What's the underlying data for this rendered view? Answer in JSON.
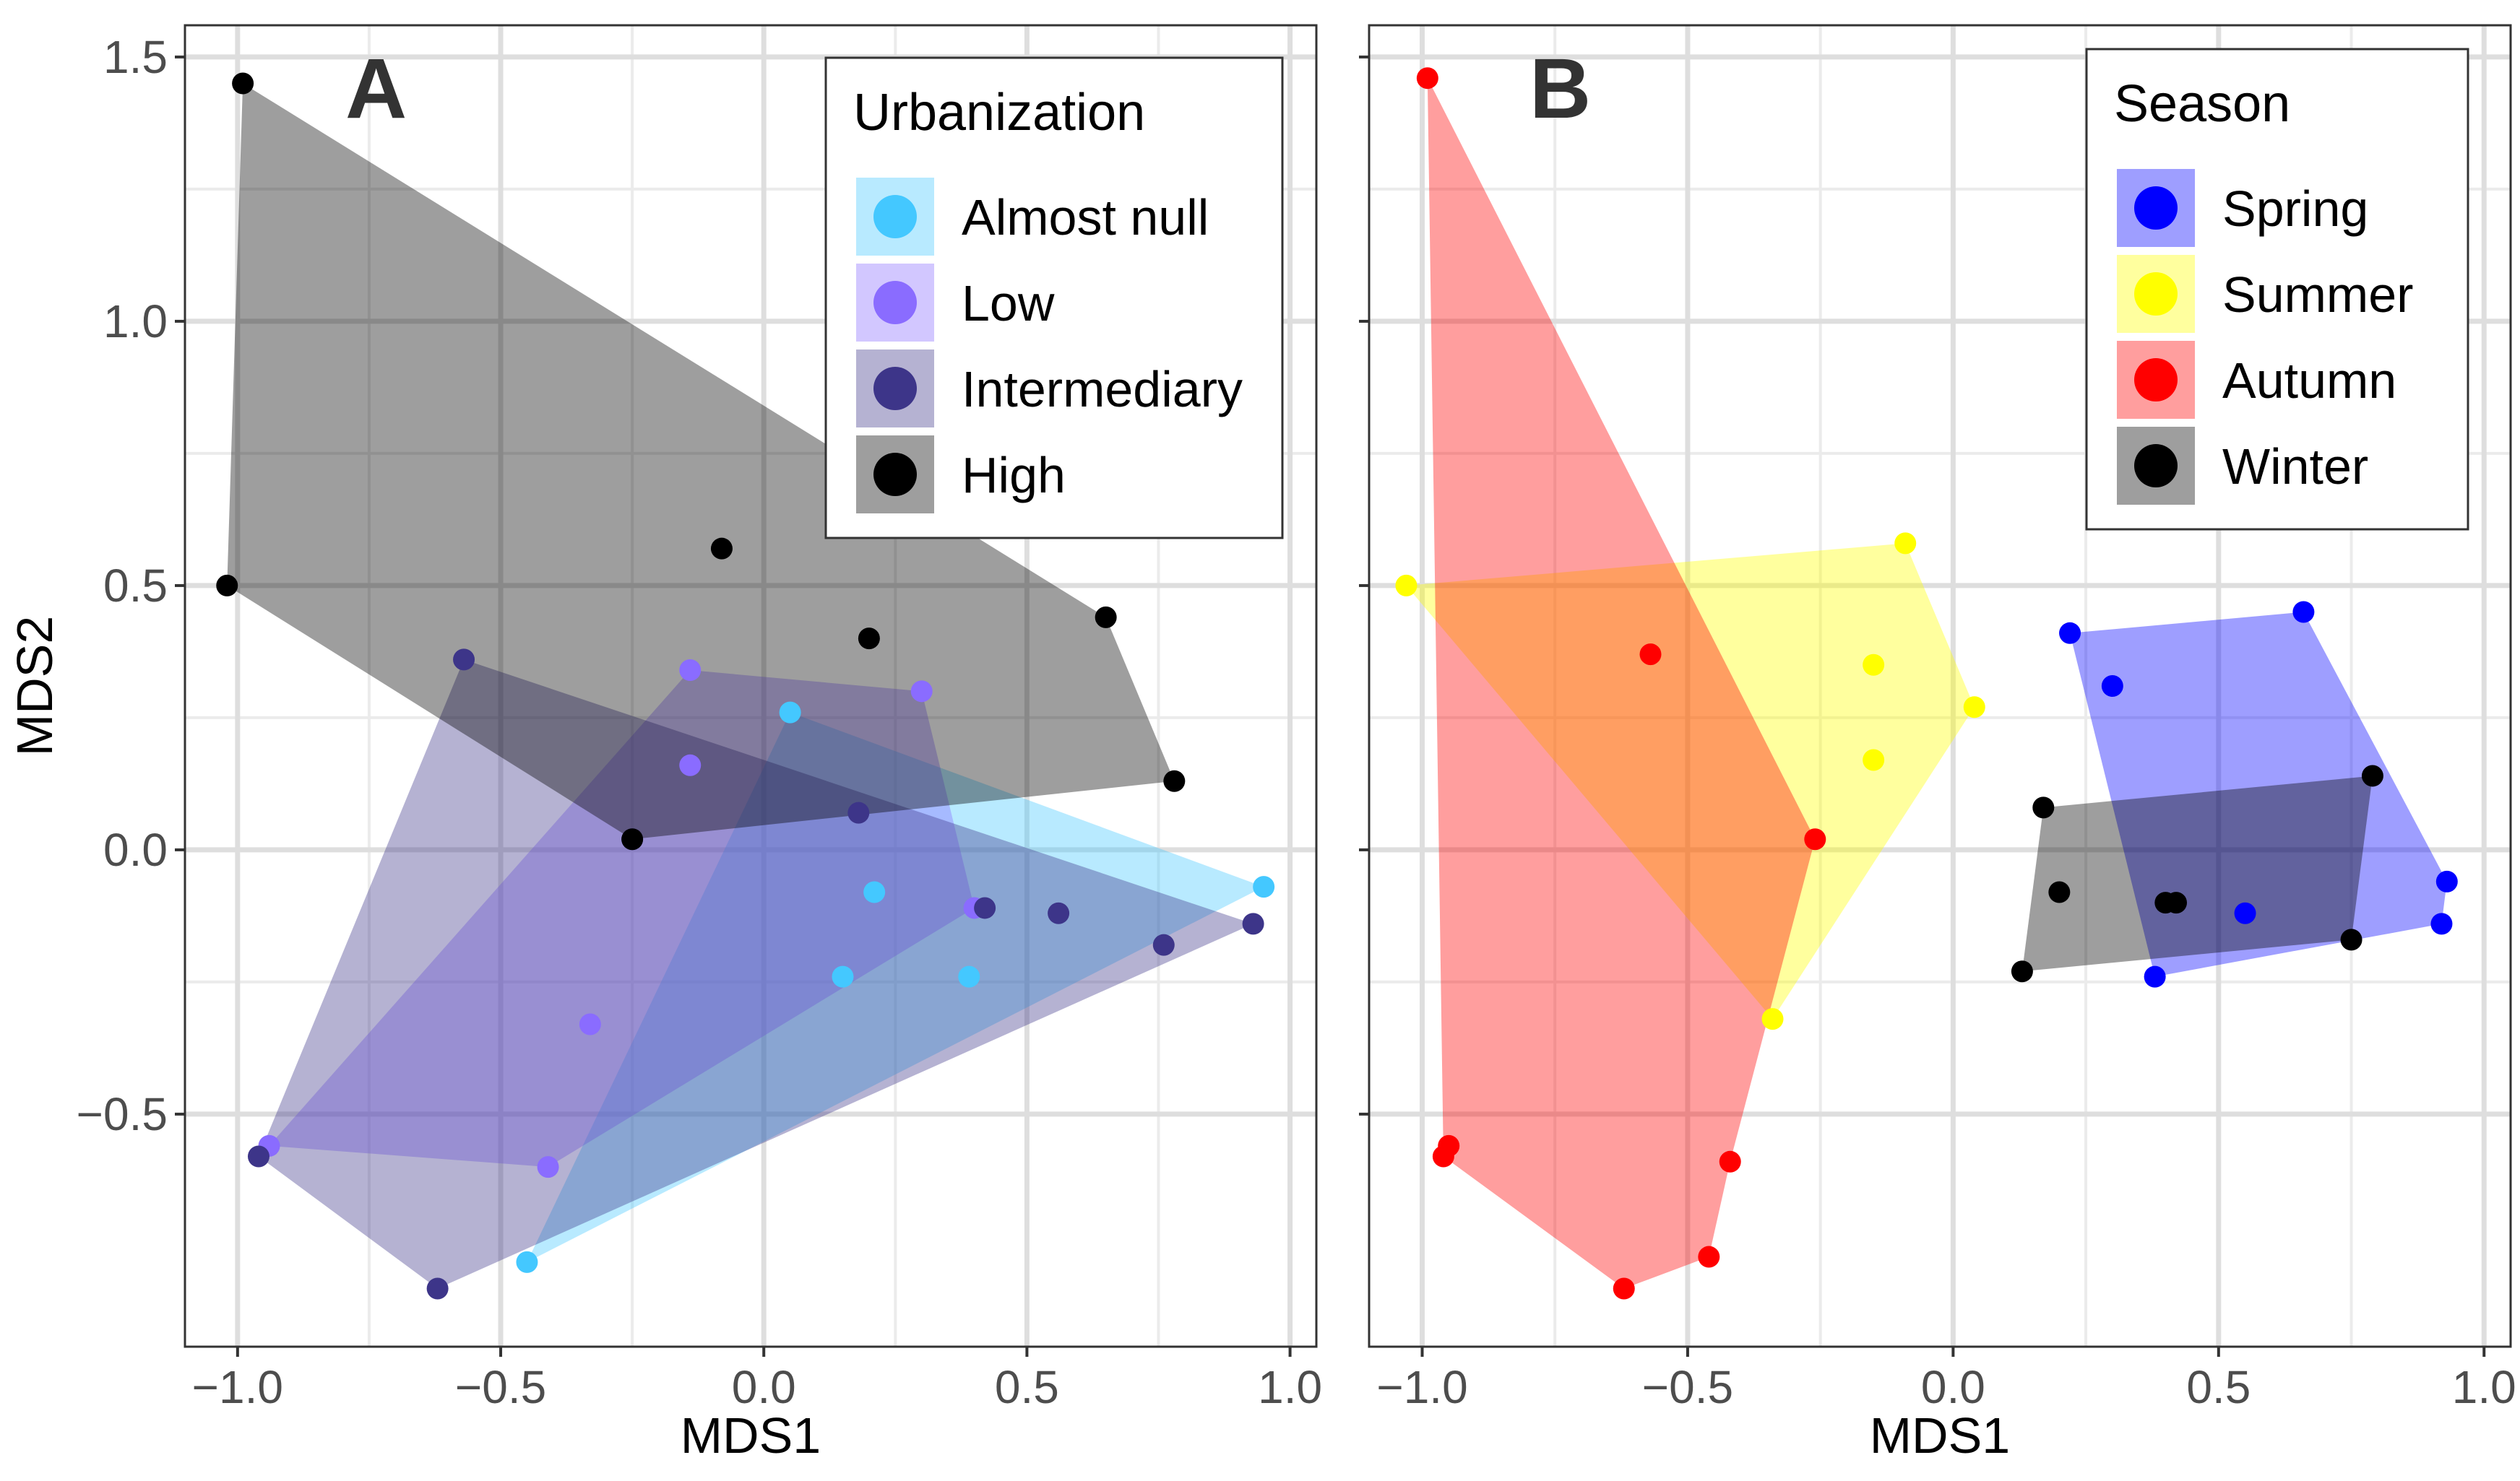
{
  "chart_data": [
    {
      "type": "scatter",
      "panel_tag": "A",
      "xlabel": "MDS1",
      "ylabel": "MDS2",
      "xlim": [
        -1.1,
        1.05
      ],
      "ylim": [
        -0.94,
        1.56
      ],
      "x_ticks": [
        {
          "value": -1.0,
          "label": "−1.0"
        },
        {
          "value": -0.5,
          "label": "−0.5"
        },
        {
          "value": 0.0,
          "label": "0.0"
        },
        {
          "value": 0.5,
          "label": "0.5"
        },
        {
          "value": 1.0,
          "label": "1.0"
        }
      ],
      "y_ticks": [
        {
          "value": -0.5,
          "label": "−0.5"
        },
        {
          "value": 0.0,
          "label": "0.0"
        },
        {
          "value": 0.5,
          "label": "0.5"
        },
        {
          "value": 1.0,
          "label": "1.0"
        },
        {
          "value": 1.5,
          "label": "1.5"
        }
      ],
      "grid": true,
      "legend": {
        "title": "Urbanization",
        "position": "top-right"
      },
      "series": [
        {
          "name": "Almost null",
          "color": "#44c8ff",
          "points": [
            [
              -0.45,
              -0.78
            ],
            [
              0.05,
              0.26
            ],
            [
              0.95,
              -0.07
            ],
            [
              0.15,
              -0.24
            ],
            [
              0.39,
              -0.24
            ],
            [
              0.21,
              -0.08
            ]
          ],
          "hull": [
            [
              -0.45,
              -0.78
            ],
            [
              0.05,
              0.26
            ],
            [
              0.95,
              -0.07
            ]
          ]
        },
        {
          "name": "Low",
          "color": "#8a6cff",
          "points": [
            [
              -0.94,
              -0.56
            ],
            [
              -0.41,
              -0.6
            ],
            [
              -0.14,
              0.34
            ],
            [
              0.3,
              0.3
            ],
            [
              0.4,
              -0.11
            ],
            [
              -0.33,
              -0.33
            ],
            [
              -0.14,
              0.16
            ]
          ],
          "hull": [
            [
              -0.94,
              -0.56
            ],
            [
              -0.14,
              0.34
            ],
            [
              0.3,
              0.3
            ],
            [
              0.4,
              -0.11
            ],
            [
              -0.41,
              -0.6
            ]
          ]
        },
        {
          "name": "Intermediary",
          "color": "#3d3589",
          "points": [
            [
              -0.96,
              -0.58
            ],
            [
              -0.57,
              0.36
            ],
            [
              -0.25,
              0.02
            ],
            [
              0.18,
              0.07
            ],
            [
              0.42,
              -0.11
            ],
            [
              0.56,
              -0.12
            ],
            [
              0.76,
              -0.18
            ],
            [
              0.93,
              -0.14
            ],
            [
              -0.62,
              -0.83
            ]
          ],
          "hull": [
            [
              -0.96,
              -0.58
            ],
            [
              -0.57,
              0.36
            ],
            [
              0.93,
              -0.14
            ],
            [
              -0.62,
              -0.83
            ]
          ]
        },
        {
          "name": "High",
          "color": "#000000",
          "points": [
            [
              -1.02,
              0.5
            ],
            [
              -0.99,
              1.45
            ],
            [
              -0.08,
              0.57
            ],
            [
              0.2,
              0.4
            ],
            [
              0.65,
              0.44
            ],
            [
              0.78,
              0.13
            ],
            [
              -0.25,
              0.02
            ]
          ],
          "hull": [
            [
              -1.02,
              0.5
            ],
            [
              -0.99,
              1.45
            ],
            [
              0.65,
              0.44
            ],
            [
              0.78,
              0.13
            ],
            [
              -0.25,
              0.02
            ]
          ]
        }
      ]
    },
    {
      "type": "scatter",
      "panel_tag": "B",
      "xlabel": "MDS1",
      "ylabel": "",
      "xlim": [
        -1.1,
        1.05
      ],
      "ylim": [
        -0.94,
        1.56
      ],
      "x_ticks": [
        {
          "value": -1.0,
          "label": "−1.0"
        },
        {
          "value": -0.5,
          "label": "−0.5"
        },
        {
          "value": 0.0,
          "label": "0.0"
        },
        {
          "value": 0.5,
          "label": "0.5"
        },
        {
          "value": 1.0,
          "label": "1.0"
        }
      ],
      "y_ticks": [
        {
          "value": -0.5,
          "label": ""
        },
        {
          "value": 0.0,
          "label": ""
        },
        {
          "value": 0.5,
          "label": ""
        },
        {
          "value": 1.0,
          "label": ""
        },
        {
          "value": 1.5,
          "label": ""
        }
      ],
      "grid": true,
      "legend": {
        "title": "Season",
        "position": "top-right"
      },
      "series": [
        {
          "name": "Spring",
          "color": "#0000ff",
          "points": [
            [
              0.22,
              0.41
            ],
            [
              0.3,
              0.31
            ],
            [
              0.66,
              0.45
            ],
            [
              0.93,
              -0.06
            ],
            [
              0.92,
              -0.14
            ],
            [
              0.38,
              -0.24
            ],
            [
              0.55,
              -0.12
            ]
          ],
          "hull": [
            [
              0.22,
              0.41
            ],
            [
              0.66,
              0.45
            ],
            [
              0.93,
              -0.06
            ],
            [
              0.92,
              -0.14
            ],
            [
              0.38,
              -0.24
            ]
          ]
        },
        {
          "name": "Summer",
          "color": "#ffff00",
          "points": [
            [
              -1.03,
              0.5
            ],
            [
              -0.09,
              0.58
            ],
            [
              0.04,
              0.27
            ],
            [
              -0.15,
              0.35
            ],
            [
              -0.15,
              0.17
            ],
            [
              -0.34,
              -0.32
            ]
          ],
          "hull": [
            [
              -1.03,
              0.5
            ],
            [
              -0.09,
              0.58
            ],
            [
              0.04,
              0.27
            ],
            [
              -0.34,
              -0.32
            ]
          ]
        },
        {
          "name": "Autumn",
          "color": "#ff0000",
          "points": [
            [
              -0.99,
              1.46
            ],
            [
              -0.57,
              0.37
            ],
            [
              -0.26,
              0.02
            ],
            [
              -0.42,
              -0.59
            ],
            [
              -0.46,
              -0.77
            ],
            [
              -0.62,
              -0.83
            ],
            [
              -0.96,
              -0.58
            ],
            [
              -0.95,
              -0.56
            ]
          ],
          "hull": [
            [
              -0.99,
              1.46
            ],
            [
              -0.26,
              0.02
            ],
            [
              -0.42,
              -0.59
            ],
            [
              -0.46,
              -0.77
            ],
            [
              -0.62,
              -0.83
            ],
            [
              -0.96,
              -0.58
            ]
          ]
        },
        {
          "name": "Winter",
          "color": "#000000",
          "points": [
            [
              0.17,
              0.08
            ],
            [
              0.2,
              -0.08
            ],
            [
              0.13,
              -0.23
            ],
            [
              0.4,
              -0.1
            ],
            [
              0.42,
              -0.1
            ],
            [
              0.75,
              -0.17
            ],
            [
              0.79,
              0.14
            ]
          ],
          "hull": [
            [
              0.17,
              0.08
            ],
            [
              0.79,
              0.14
            ],
            [
              0.75,
              -0.17
            ],
            [
              0.13,
              -0.23
            ]
          ]
        }
      ]
    }
  ]
}
